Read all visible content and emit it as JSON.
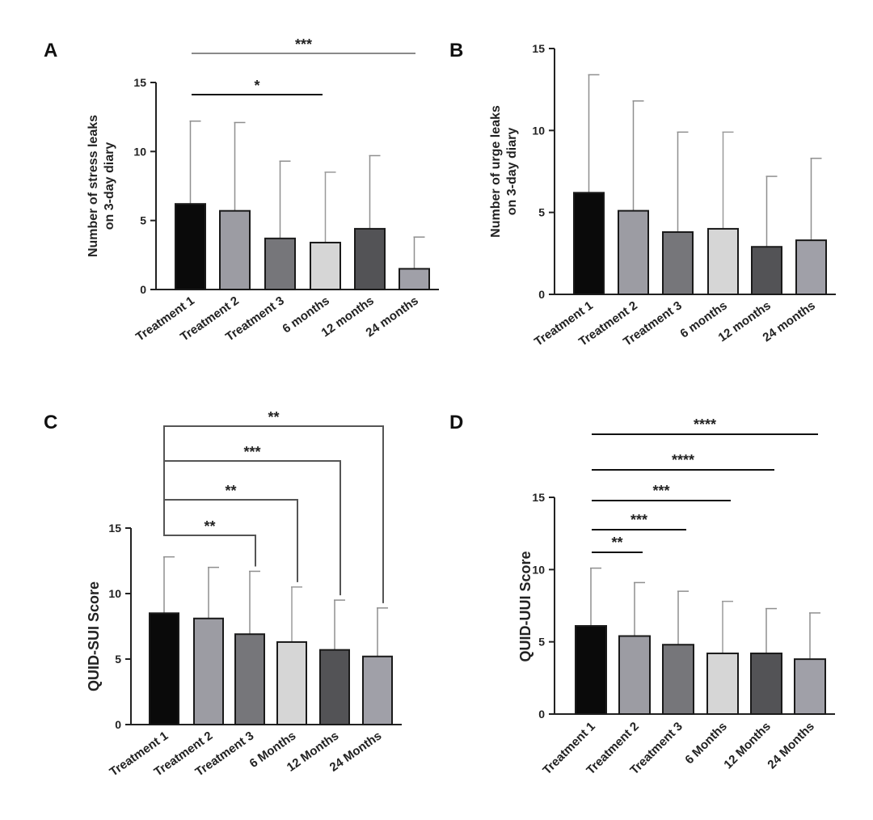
{
  "panels": [
    {
      "label": "A",
      "type": "bar",
      "categories": [
        "Treatment 1",
        "Treatment 2",
        "Treatment 3",
        "6 months",
        "12 months",
        "24 months"
      ],
      "values": [
        6.2,
        5.7,
        3.7,
        3.4,
        4.4,
        1.5
      ],
      "errors": [
        6.0,
        6.4,
        5.6,
        5.1,
        5.3,
        2.3
      ],
      "colors": [
        "#0a0a0a",
        "#9c9ca3",
        "#76767a",
        "#d6d6d6",
        "#535356",
        "#a0a0a8"
      ],
      "ylabel_lines": [
        "Number of stress leaks",
        "on 3-day diary"
      ],
      "ylim": [
        0,
        15
      ],
      "yticks": [
        0,
        5,
        10,
        15
      ],
      "significance": [
        {
          "stars": "***",
          "from": 0,
          "to": 5,
          "style": "line",
          "color": "#8a8a8a"
        },
        {
          "stars": "*",
          "from": 0,
          "to": 3,
          "style": "line",
          "color": "#111111"
        }
      ]
    },
    {
      "label": "B",
      "type": "bar",
      "categories": [
        "Treatment 1",
        "Treatment 2",
        "Treatment 3",
        "6 months",
        "12 months",
        "24 months"
      ],
      "values": [
        6.2,
        5.1,
        3.8,
        4.0,
        2.9,
        3.3
      ],
      "errors": [
        7.2,
        6.7,
        6.1,
        5.9,
        4.3,
        5.0
      ],
      "colors": [
        "#0a0a0a",
        "#9c9ca3",
        "#76767a",
        "#d6d6d6",
        "#535356",
        "#a0a0a8"
      ],
      "ylabel_lines": [
        "Number of urge leaks",
        "on 3-day diary"
      ],
      "ylim": [
        0,
        15
      ],
      "yticks": [
        0,
        5,
        10,
        15
      ],
      "significance": []
    },
    {
      "label": "C",
      "type": "bar",
      "categories": [
        "Treatment 1",
        "Treatment 2",
        "Treatment 3",
        "6 Months",
        "12 Months",
        "24 Months"
      ],
      "values": [
        8.5,
        8.1,
        6.9,
        6.3,
        5.7,
        5.2
      ],
      "errors": [
        4.3,
        3.9,
        4.8,
        4.2,
        3.8,
        3.7
      ],
      "colors": [
        "#0a0a0a",
        "#9c9ca3",
        "#76767a",
        "#d6d6d6",
        "#535356",
        "#a0a0a8"
      ],
      "ylabel_lines": [
        "QUID-SUI  Score"
      ],
      "ylim": [
        0,
        15
      ],
      "yticks": [
        0,
        5,
        10,
        15
      ],
      "significance": [
        {
          "stars": "**",
          "from": 0,
          "to": 5,
          "style": "bracket",
          "color": "#555555"
        },
        {
          "stars": "***",
          "from": 0,
          "to": 4,
          "style": "bracket",
          "color": "#555555"
        },
        {
          "stars": "**",
          "from": 0,
          "to": 3,
          "style": "bracket",
          "color": "#555555"
        },
        {
          "stars": "**",
          "from": 0,
          "to": 2,
          "style": "bracket",
          "color": "#555555"
        }
      ]
    },
    {
      "label": "D",
      "type": "bar",
      "categories": [
        "Treatment 1",
        "Treatment 2",
        "Treatment 3",
        "6 Months",
        "12 Months",
        "24 Months"
      ],
      "values": [
        6.1,
        5.4,
        4.8,
        4.2,
        4.2,
        3.8
      ],
      "errors": [
        4.0,
        3.7,
        3.7,
        3.6,
        3.1,
        3.2
      ],
      "colors": [
        "#0a0a0a",
        "#9c9ca3",
        "#76767a",
        "#d6d6d6",
        "#535356",
        "#a0a0a8"
      ],
      "ylabel_lines": [
        "QUID-UUI Score"
      ],
      "ylim": [
        0,
        15
      ],
      "yticks": [
        0,
        5,
        10,
        15
      ],
      "significance": [
        {
          "stars": "****",
          "from": 0,
          "to": 5,
          "style": "line",
          "color": "#111111"
        },
        {
          "stars": "****",
          "from": 0,
          "to": 4,
          "style": "line",
          "color": "#111111"
        },
        {
          "stars": "***",
          "from": 0,
          "to": 3,
          "style": "line",
          "color": "#111111"
        },
        {
          "stars": "***",
          "from": 0,
          "to": 2,
          "style": "line",
          "color": "#111111"
        },
        {
          "stars": "**",
          "from": 0,
          "to": 1,
          "style": "line",
          "color": "#111111"
        }
      ]
    }
  ],
  "chart_data": [
    {
      "type": "bar",
      "title": "A",
      "categories": [
        "Treatment 1",
        "Treatment 2",
        "Treatment 3",
        "6 months",
        "12 months",
        "24 months"
      ],
      "series": [
        {
          "values": [
            6.2,
            5.7,
            3.7,
            3.4,
            4.4,
            1.5
          ],
          "error_upper": [
            6.0,
            6.4,
            5.6,
            5.1,
            5.3,
            2.3
          ]
        }
      ],
      "ylabel": "Number of stress leaks on 3-day diary",
      "ylim": [
        0,
        15
      ]
    },
    {
      "type": "bar",
      "title": "B",
      "categories": [
        "Treatment 1",
        "Treatment 2",
        "Treatment 3",
        "6 months",
        "12 months",
        "24 months"
      ],
      "series": [
        {
          "values": [
            6.2,
            5.1,
            3.8,
            4.0,
            2.9,
            3.3
          ],
          "error_upper": [
            7.2,
            6.7,
            6.1,
            5.9,
            4.3,
            5.0
          ]
        }
      ],
      "ylabel": "Number of urge leaks on 3-day diary",
      "ylim": [
        0,
        15
      ]
    },
    {
      "type": "bar",
      "title": "C",
      "categories": [
        "Treatment 1",
        "Treatment 2",
        "Treatment 3",
        "6 Months",
        "12 Months",
        "24 Months"
      ],
      "series": [
        {
          "values": [
            8.5,
            8.1,
            6.9,
            6.3,
            5.7,
            5.2
          ],
          "error_upper": [
            4.3,
            3.9,
            4.8,
            4.2,
            3.8,
            3.7
          ]
        }
      ],
      "ylabel": "QUID-SUI  Score",
      "ylim": [
        0,
        15
      ]
    },
    {
      "type": "bar",
      "title": "D",
      "categories": [
        "Treatment 1",
        "Treatment 2",
        "Treatment 3",
        "6 Months",
        "12 Months",
        "24 Months"
      ],
      "series": [
        {
          "values": [
            6.1,
            5.4,
            4.8,
            4.2,
            4.2,
            3.8
          ],
          "error_upper": [
            4.0,
            3.7,
            3.7,
            3.6,
            3.1,
            3.2
          ]
        }
      ],
      "ylabel": "QUID-UUI Score",
      "ylim": [
        0,
        15
      ]
    }
  ]
}
